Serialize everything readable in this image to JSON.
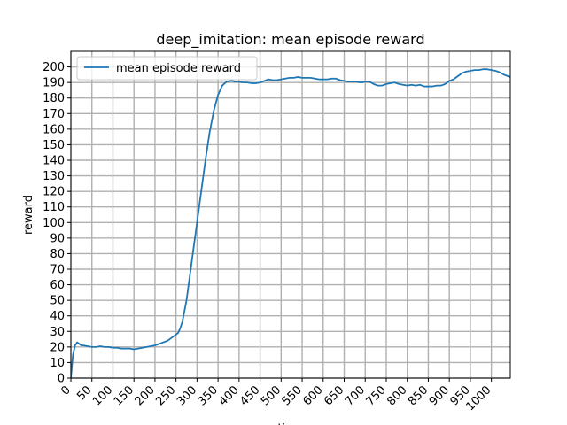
{
  "chart_data": {
    "type": "line",
    "title": "deep_imitation: mean episode reward",
    "xlabel": "time",
    "ylabel": "reward",
    "xlim": [
      0,
      1045
    ],
    "ylim": [
      0,
      210
    ],
    "xticks": [
      0,
      50,
      100,
      150,
      200,
      250,
      300,
      350,
      400,
      450,
      500,
      550,
      600,
      650,
      700,
      750,
      800,
      850,
      900,
      950,
      1000
    ],
    "yticks": [
      0,
      10,
      20,
      30,
      40,
      50,
      60,
      70,
      80,
      90,
      100,
      110,
      120,
      130,
      140,
      150,
      160,
      170,
      180,
      190,
      200
    ],
    "grid": true,
    "legend_position": "top-left",
    "series": [
      {
        "name": "mean episode reward",
        "color": "#1f77b4",
        "x": [
          0,
          5,
          10,
          15,
          20,
          25,
          30,
          40,
          50,
          60,
          70,
          80,
          90,
          100,
          110,
          120,
          130,
          140,
          150,
          160,
          170,
          180,
          190,
          200,
          210,
          220,
          230,
          240,
          250,
          255,
          260,
          265,
          270,
          275,
          280,
          290,
          300,
          310,
          320,
          330,
          340,
          350,
          360,
          370,
          380,
          385,
          390,
          400,
          410,
          420,
          430,
          440,
          450,
          460,
          470,
          480,
          490,
          500,
          510,
          520,
          530,
          540,
          550,
          560,
          570,
          580,
          590,
          600,
          610,
          620,
          630,
          640,
          650,
          660,
          670,
          680,
          690,
          700,
          710,
          720,
          730,
          740,
          750,
          760,
          770,
          780,
          790,
          800,
          810,
          820,
          830,
          840,
          850,
          860,
          870,
          880,
          890,
          900,
          910,
          920,
          930,
          940,
          950,
          960,
          970,
          980,
          990,
          1000,
          1010,
          1020,
          1030,
          1040,
          1045
        ],
        "values": [
          0,
          15,
          21,
          23,
          22,
          21,
          21,
          20.5,
          20,
          20,
          20.5,
          20,
          20,
          19.5,
          19.5,
          19,
          19,
          19,
          18.5,
          19,
          19.5,
          20,
          20.5,
          21,
          22,
          23,
          24,
          26,
          28,
          29,
          32,
          36,
          43,
          50,
          60,
          80,
          100,
          120,
          140,
          158,
          172,
          182,
          188,
          190.5,
          191,
          191,
          190.5,
          190.5,
          190,
          190,
          189.5,
          189.5,
          190,
          191,
          192,
          191.5,
          191.5,
          192,
          192.5,
          193,
          193,
          193.5,
          193,
          193,
          193,
          192.5,
          192,
          192,
          192,
          192.5,
          192.5,
          191.5,
          191,
          190.5,
          190.5,
          190.5,
          190,
          190.5,
          190.5,
          189,
          188,
          188,
          189,
          189.5,
          190,
          189,
          188.5,
          188,
          188.5,
          188,
          188.5,
          187.5,
          187.5,
          187.5,
          188,
          188,
          189,
          191,
          192,
          194,
          196,
          197,
          197.5,
          198,
          198,
          198.5,
          198.5,
          198,
          197.5,
          196.5,
          195,
          194,
          193.5
        ]
      }
    ]
  }
}
